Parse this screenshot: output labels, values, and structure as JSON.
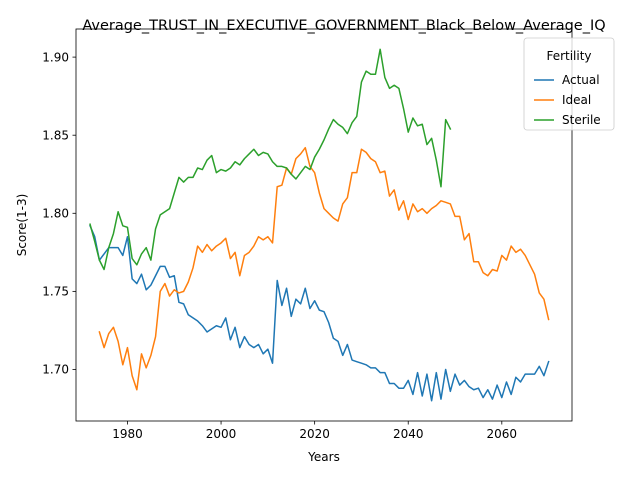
{
  "chart_data": {
    "type": "line",
    "title": "Average_TRUST_IN_EXECUTIVE_GOVERNMENT_Black_Below_Average_IQ",
    "xlabel": "Years",
    "ylabel": "Score(1-3)",
    "xlim": [
      1969,
      2075
    ],
    "ylim": [
      1.667,
      1.918
    ],
    "xticks": [
      1980,
      2000,
      2020,
      2040,
      2060
    ],
    "yticks": [
      1.7,
      1.75,
      1.8,
      1.85,
      1.9
    ],
    "xtick_labels": [
      "1980",
      "2000",
      "2020",
      "2040",
      "2060"
    ],
    "ytick_labels": [
      "1.70",
      "1.75",
      "1.80",
      "1.85",
      "1.90"
    ],
    "grid": false,
    "legend": {
      "title": "Fertility",
      "placement": "top-right"
    },
    "series": [
      {
        "name": "Actual",
        "color": "#1f77b4",
        "x": [
          1972,
          1973,
          1974,
          1975,
          1976,
          1977,
          1978,
          1979,
          1980,
          1981,
          1982,
          1983,
          1984,
          1985,
          1986,
          1987,
          1988,
          1989,
          1990,
          1991,
          1992,
          1993,
          1994,
          1995,
          1996,
          1997,
          1998,
          1999,
          2000,
          2001,
          2002,
          2003,
          2004,
          2005,
          2006,
          2007,
          2008,
          2009,
          2010,
          2011,
          2012,
          2013,
          2014,
          2015,
          2016,
          2017,
          2018,
          2019,
          2020,
          2021,
          2022,
          2023,
          2024,
          2025,
          2026,
          2027,
          2028,
          2029,
          2030,
          2031,
          2032,
          2033,
          2034,
          2035,
          2036,
          2037,
          2038,
          2039,
          2040,
          2041,
          2042,
          2043,
          2044,
          2045,
          2046,
          2047,
          2048,
          2049,
          2050,
          2051,
          2052,
          2053,
          2054,
          2055,
          2056,
          2057,
          2058,
          2059,
          2060,
          2061,
          2062,
          2063,
          2064,
          2065,
          2066,
          2067,
          2068,
          2069,
          2070
        ],
        "values": [
          1.792,
          1.785,
          1.77,
          1.774,
          1.778,
          1.778,
          1.778,
          1.773,
          1.785,
          1.758,
          1.755,
          1.761,
          1.751,
          1.754,
          1.76,
          1.766,
          1.766,
          1.759,
          1.76,
          1.743,
          1.742,
          1.735,
          1.733,
          1.731,
          1.728,
          1.724,
          1.726,
          1.728,
          1.727,
          1.733,
          1.719,
          1.727,
          1.714,
          1.721,
          1.716,
          1.714,
          1.716,
          1.71,
          1.713,
          1.704,
          1.757,
          1.741,
          1.752,
          1.734,
          1.745,
          1.742,
          1.752,
          1.739,
          1.744,
          1.738,
          1.737,
          1.73,
          1.72,
          1.718,
          1.709,
          1.716,
          1.706,
          1.705,
          1.704,
          1.703,
          1.701,
          1.701,
          1.698,
          1.698,
          1.691,
          1.691,
          1.688,
          1.688,
          1.693,
          1.684,
          1.698,
          1.683,
          1.697,
          1.68,
          1.698,
          1.681,
          1.7,
          1.686,
          1.697,
          1.69,
          1.693,
          1.689,
          1.687,
          1.688,
          1.682,
          1.687,
          1.681,
          1.69,
          1.682,
          1.692,
          1.684,
          1.695,
          1.692,
          1.697,
          1.697,
          1.697,
          1.702,
          1.696,
          1.705
        ]
      },
      {
        "name": "Ideal",
        "color": "#ff7f0e",
        "x": [
          1974,
          1975,
          1976,
          1977,
          1978,
          1979,
          1980,
          1981,
          1982,
          1983,
          1984,
          1985,
          1986,
          1987,
          1988,
          1989,
          1990,
          1991,
          1992,
          1993,
          1994,
          1995,
          1996,
          1997,
          1998,
          1999,
          2000,
          2001,
          2002,
          2003,
          2004,
          2005,
          2006,
          2007,
          2008,
          2009,
          2010,
          2011,
          2012,
          2013,
          2014,
          2015,
          2016,
          2017,
          2018,
          2019,
          2020,
          2021,
          2022,
          2023,
          2024,
          2025,
          2026,
          2027,
          2028,
          2029,
          2030,
          2031,
          2032,
          2033,
          2034,
          2035,
          2036,
          2037,
          2038,
          2039,
          2040,
          2041,
          2042,
          2043,
          2044,
          2045,
          2046,
          2047,
          2048,
          2049,
          2050,
          2051,
          2052,
          2053,
          2054,
          2055,
          2056,
          2057,
          2058,
          2059,
          2060,
          2061,
          2062,
          2063,
          2064,
          2065,
          2066,
          2067,
          2068,
          2069,
          2070
        ],
        "values": [
          1.724,
          1.714,
          1.723,
          1.727,
          1.718,
          1.703,
          1.714,
          1.696,
          1.687,
          1.71,
          1.701,
          1.709,
          1.721,
          1.75,
          1.755,
          1.747,
          1.751,
          1.749,
          1.75,
          1.756,
          1.765,
          1.779,
          1.775,
          1.78,
          1.776,
          1.779,
          1.781,
          1.784,
          1.771,
          1.775,
          1.76,
          1.773,
          1.775,
          1.779,
          1.785,
          1.783,
          1.785,
          1.781,
          1.817,
          1.818,
          1.829,
          1.825,
          1.835,
          1.838,
          1.842,
          1.83,
          1.826,
          1.813,
          1.803,
          1.8,
          1.797,
          1.795,
          1.806,
          1.81,
          1.826,
          1.826,
          1.841,
          1.839,
          1.835,
          1.833,
          1.826,
          1.827,
          1.811,
          1.815,
          1.802,
          1.808,
          1.796,
          1.806,
          1.801,
          1.803,
          1.8,
          1.803,
          1.805,
          1.808,
          1.807,
          1.806,
          1.798,
          1.798,
          1.783,
          1.787,
          1.769,
          1.769,
          1.762,
          1.76,
          1.764,
          1.763,
          1.773,
          1.77,
          1.779,
          1.775,
          1.777,
          1.773,
          1.767,
          1.761,
          1.749,
          1.745,
          1.732
        ]
      },
      {
        "name": "Sterile",
        "color": "#2ca02c",
        "x": [
          1972,
          1973,
          1974,
          1975,
          1976,
          1977,
          1978,
          1979,
          1980,
          1981,
          1982,
          1983,
          1984,
          1985,
          1986,
          1987,
          1988,
          1989,
          1990,
          1991,
          1992,
          1993,
          1994,
          1995,
          1996,
          1997,
          1998,
          1999,
          2000,
          2001,
          2002,
          2003,
          2004,
          2005,
          2006,
          2007,
          2008,
          2009,
          2010,
          2011,
          2012,
          2013,
          2014,
          2015,
          2016,
          2017,
          2018,
          2019,
          2020,
          2021,
          2022,
          2023,
          2024,
          2025,
          2026,
          2027,
          2028,
          2029,
          2030,
          2031,
          2032,
          2033,
          2034,
          2035,
          2036,
          2037,
          2038,
          2039,
          2040,
          2041,
          2042,
          2043,
          2044,
          2045,
          2046,
          2047,
          2048,
          2049
        ],
        "values": [
          1.793,
          1.782,
          1.77,
          1.764,
          1.778,
          1.787,
          1.801,
          1.792,
          1.791,
          1.771,
          1.767,
          1.774,
          1.778,
          1.77,
          1.79,
          1.799,
          1.801,
          1.803,
          1.813,
          1.823,
          1.82,
          1.823,
          1.823,
          1.829,
          1.828,
          1.834,
          1.837,
          1.826,
          1.828,
          1.827,
          1.829,
          1.833,
          1.831,
          1.835,
          1.838,
          1.841,
          1.837,
          1.839,
          1.838,
          1.833,
          1.83,
          1.83,
          1.829,
          1.825,
          1.822,
          1.826,
          1.83,
          1.828,
          1.836,
          1.841,
          1.847,
          1.854,
          1.86,
          1.857,
          1.855,
          1.851,
          1.858,
          1.862,
          1.884,
          1.891,
          1.889,
          1.889,
          1.905,
          1.887,
          1.88,
          1.882,
          1.88,
          1.867,
          1.852,
          1.861,
          1.856,
          1.857,
          1.844,
          1.848,
          1.834,
          1.817,
          1.86,
          1.854
        ]
      }
    ]
  }
}
